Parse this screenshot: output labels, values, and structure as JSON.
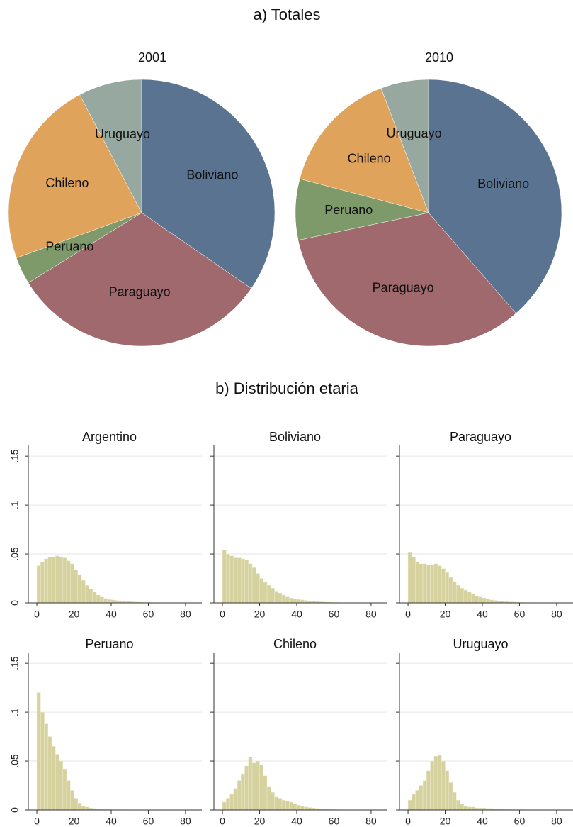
{
  "titles": [
    "a) Totales",
    "b) Distribución etaria"
  ],
  "chart_data": [
    {
      "type": "pie",
      "title": "2001",
      "categories": [
        "Boliviano",
        "Paraguayo",
        "Peruano",
        "Chileno",
        "Uruguayo"
      ],
      "values": [
        34.6,
        31.6,
        3.3,
        22.8,
        7.7
      ],
      "colors": [
        "#5a7391",
        "#a0696d",
        "#7f9a6a",
        "#e0a35c",
        "#97a8a0"
      ]
    },
    {
      "type": "pie",
      "title": "2010",
      "categories": [
        "Boliviano",
        "Paraguayo",
        "Peruano",
        "Chileno",
        "Uruguayo"
      ],
      "values": [
        38.6,
        33.1,
        7.4,
        15.1,
        5.8
      ],
      "colors": [
        "#5a7391",
        "#a0696d",
        "#7f9a6a",
        "#e0a35c",
        "#97a8a0"
      ]
    },
    {
      "type": "histogram",
      "title": "Argentino",
      "color": "#d6d2a0",
      "grid": true,
      "xlim": [
        -4.6,
        88.8
      ],
      "ylim": [
        0,
        0.161
      ],
      "xticks": [
        0,
        20,
        40,
        60,
        80
      ],
      "yticks": [
        0,
        {
          "value": 0.05,
          "label": ".05"
        },
        {
          "value": 0.1,
          "label": ".1"
        },
        {
          "value": 0.15,
          "label": ".15"
        }
      ],
      "bins": [
        0,
        2,
        4,
        6,
        8,
        10,
        12,
        14,
        16,
        18,
        20,
        22,
        24,
        26,
        28,
        30,
        32,
        34,
        36,
        38,
        40,
        42,
        44,
        46,
        48,
        50,
        52,
        54,
        56,
        58,
        60,
        62,
        64,
        66,
        68,
        70,
        72,
        74,
        76,
        78,
        80,
        82,
        84,
        86
      ],
      "values": [
        0.038,
        0.042,
        0.045,
        0.047,
        0.047,
        0.048,
        0.047,
        0.046,
        0.043,
        0.04,
        0.034,
        0.029,
        0.023,
        0.018,
        0.014,
        0.011,
        0.008,
        0.006,
        0.0045,
        0.0035,
        0.003,
        0.0025,
        0.002,
        0.0017,
        0.0014,
        0.0012,
        0.001,
        0.0008,
        0.0007,
        0.0005,
        0.0004,
        0.0003,
        0.0002,
        0.0002,
        0.0001,
        0.0001,
        0.0001,
        0.0001,
        0,
        0,
        0,
        0,
        0
      ]
    },
    {
      "type": "histogram",
      "title": "Boliviano",
      "color": "#d6d2a0",
      "grid": true,
      "xlim": [
        -4.6,
        88.8
      ],
      "ylim": [
        0,
        0.161
      ],
      "xticks": [
        0,
        20,
        40,
        60,
        80
      ],
      "yticks": [
        0,
        {
          "value": 0.05,
          "label": ".05"
        },
        {
          "value": 0.1,
          "label": ".1"
        },
        {
          "value": 0.15,
          "label": ".15"
        }
      ],
      "bins": [
        0,
        2,
        4,
        6,
        8,
        10,
        12,
        14,
        16,
        18,
        20,
        22,
        24,
        26,
        28,
        30,
        32,
        34,
        36,
        38,
        40,
        42,
        44,
        46,
        48,
        50,
        52,
        54,
        56,
        58,
        60,
        62,
        64,
        66,
        68,
        70,
        72,
        74,
        76,
        78,
        80,
        82,
        84,
        86
      ],
      "values": [
        0.054,
        0.05,
        0.048,
        0.046,
        0.046,
        0.045,
        0.044,
        0.04,
        0.036,
        0.03,
        0.025,
        0.021,
        0.018,
        0.015,
        0.012,
        0.01,
        0.008,
        0.006,
        0.005,
        0.004,
        0.0035,
        0.003,
        0.0025,
        0.002,
        0.0017,
        0.0014,
        0.0011,
        0.0009,
        0.0007,
        0.0005,
        0.0004,
        0.0003,
        0.0002,
        0.0002,
        0.0001,
        0.0001,
        0.0001,
        0.0001,
        0,
        0,
        0,
        0,
        0
      ]
    },
    {
      "type": "histogram",
      "title": "Paraguayo",
      "color": "#d6d2a0",
      "grid": true,
      "xlim": [
        -4.6,
        88.8
      ],
      "ylim": [
        0,
        0.161
      ],
      "xticks": [
        0,
        20,
        40,
        60,
        80
      ],
      "yticks": [
        0,
        {
          "value": 0.05,
          "label": ".05"
        },
        {
          "value": 0.1,
          "label": ".1"
        },
        {
          "value": 0.15,
          "label": ".15"
        }
      ],
      "bins": [
        0,
        2,
        4,
        6,
        8,
        10,
        12,
        14,
        16,
        18,
        20,
        22,
        24,
        26,
        28,
        30,
        32,
        34,
        36,
        38,
        40,
        42,
        44,
        46,
        48,
        50,
        52,
        54,
        56,
        58,
        60,
        62,
        64,
        66,
        68,
        70,
        72,
        74,
        76,
        78,
        80,
        82,
        84,
        86
      ],
      "values": [
        0.052,
        0.047,
        0.042,
        0.04,
        0.04,
        0.039,
        0.039,
        0.04,
        0.038,
        0.035,
        0.031,
        0.026,
        0.022,
        0.018,
        0.015,
        0.013,
        0.011,
        0.009,
        0.007,
        0.006,
        0.005,
        0.004,
        0.003,
        0.0025,
        0.002,
        0.0016,
        0.0013,
        0.001,
        0.0008,
        0.0006,
        0.0004,
        0.0003,
        0.0002,
        0.0002,
        0.0001,
        0.0001,
        0.0001,
        0.0001,
        0,
        0,
        0,
        0,
        0
      ]
    },
    {
      "type": "histogram",
      "title": "Peruano",
      "color": "#d6d2a0",
      "grid": true,
      "xlim": [
        -4.6,
        88.8
      ],
      "ylim": [
        0,
        0.161
      ],
      "xticks": [
        0,
        20,
        40,
        60,
        80
      ],
      "yticks": [
        0,
        {
          "value": 0.05,
          "label": ".05"
        },
        {
          "value": 0.1,
          "label": ".1"
        },
        {
          "value": 0.15,
          "label": ".15"
        }
      ],
      "bins": [
        0,
        2,
        4,
        6,
        8,
        10,
        12,
        14,
        16,
        18,
        20,
        22,
        24,
        26,
        28,
        30,
        32,
        34,
        36,
        38,
        40,
        42,
        44,
        46,
        48,
        50,
        52,
        54,
        56,
        58,
        60,
        62,
        64,
        66,
        68,
        70,
        72,
        74,
        76,
        78,
        80,
        82,
        84,
        86
      ],
      "values": [
        0.12,
        0.1,
        0.088,
        0.075,
        0.065,
        0.057,
        0.05,
        0.042,
        0.03,
        0.02,
        0.012,
        0.007,
        0.004,
        0.003,
        0.002,
        0.0015,
        0.001,
        0.0008,
        0.0006,
        0.0005,
        0.0004,
        0.0003,
        0.0003,
        0.0002,
        0.0002,
        0.0002,
        0.0001,
        0.0001,
        0.0001,
        0.0001,
        0,
        0,
        0,
        0,
        0,
        0,
        0,
        0,
        0,
        0,
        0,
        0,
        0
      ]
    },
    {
      "type": "histogram",
      "title": "Chileno",
      "color": "#d6d2a0",
      "grid": true,
      "xlim": [
        -4.6,
        88.8
      ],
      "ylim": [
        0,
        0.161
      ],
      "xticks": [
        0,
        20,
        40,
        60,
        80
      ],
      "yticks": [
        0,
        {
          "value": 0.05,
          "label": ".05"
        },
        {
          "value": 0.1,
          "label": ".1"
        },
        {
          "value": 0.15,
          "label": ".15"
        }
      ],
      "bins": [
        0,
        2,
        4,
        6,
        8,
        10,
        12,
        14,
        16,
        18,
        20,
        22,
        24,
        26,
        28,
        30,
        32,
        34,
        36,
        38,
        40,
        42,
        44,
        46,
        48,
        50,
        52,
        54,
        56,
        58,
        60,
        62,
        64,
        66,
        68,
        70,
        72,
        74,
        76,
        78,
        80,
        82,
        84,
        86
      ],
      "values": [
        0.008,
        0.012,
        0.016,
        0.022,
        0.03,
        0.037,
        0.045,
        0.054,
        0.048,
        0.05,
        0.046,
        0.035,
        0.024,
        0.018,
        0.014,
        0.012,
        0.01,
        0.009,
        0.008,
        0.006,
        0.005,
        0.004,
        0.003,
        0.0025,
        0.002,
        0.0016,
        0.0013,
        0.001,
        0.0008,
        0.0006,
        0.0004,
        0.0003,
        0.0002,
        0.0002,
        0.0001,
        0.0001,
        0.0001,
        0.0001,
        0,
        0,
        0,
        0,
        0
      ]
    },
    {
      "type": "histogram",
      "title": "Uruguayo",
      "color": "#d6d2a0",
      "grid": true,
      "xlim": [
        -4.6,
        88.8
      ],
      "ylim": [
        0,
        0.161
      ],
      "xticks": [
        0,
        20,
        40,
        60,
        80
      ],
      "yticks": [
        0,
        {
          "value": 0.05,
          "label": ".05"
        },
        {
          "value": 0.1,
          "label": ".1"
        },
        {
          "value": 0.15,
          "label": ".15"
        }
      ],
      "bins": [
        0,
        2,
        4,
        6,
        8,
        10,
        12,
        14,
        16,
        18,
        20,
        22,
        24,
        26,
        28,
        30,
        32,
        34,
        36,
        38,
        40,
        42,
        44,
        46,
        48,
        50,
        52,
        54,
        56,
        58,
        60,
        62,
        64,
        66,
        68,
        70,
        72,
        74,
        76,
        78,
        80,
        82,
        84,
        86
      ],
      "values": [
        0.01,
        0.016,
        0.02,
        0.025,
        0.03,
        0.04,
        0.05,
        0.055,
        0.056,
        0.05,
        0.04,
        0.028,
        0.018,
        0.01,
        0.006,
        0.004,
        0.003,
        0.003,
        0.002,
        0.002,
        0.002,
        0.0015,
        0.0015,
        0.001,
        0.001,
        0.001,
        0.0008,
        0.0007,
        0.0005,
        0.0004,
        0.0004,
        0.0003,
        0.0002,
        0.0002,
        0.0001,
        0.0001,
        0.0001,
        0.0001,
        0,
        0,
        0,
        0,
        0
      ]
    }
  ]
}
